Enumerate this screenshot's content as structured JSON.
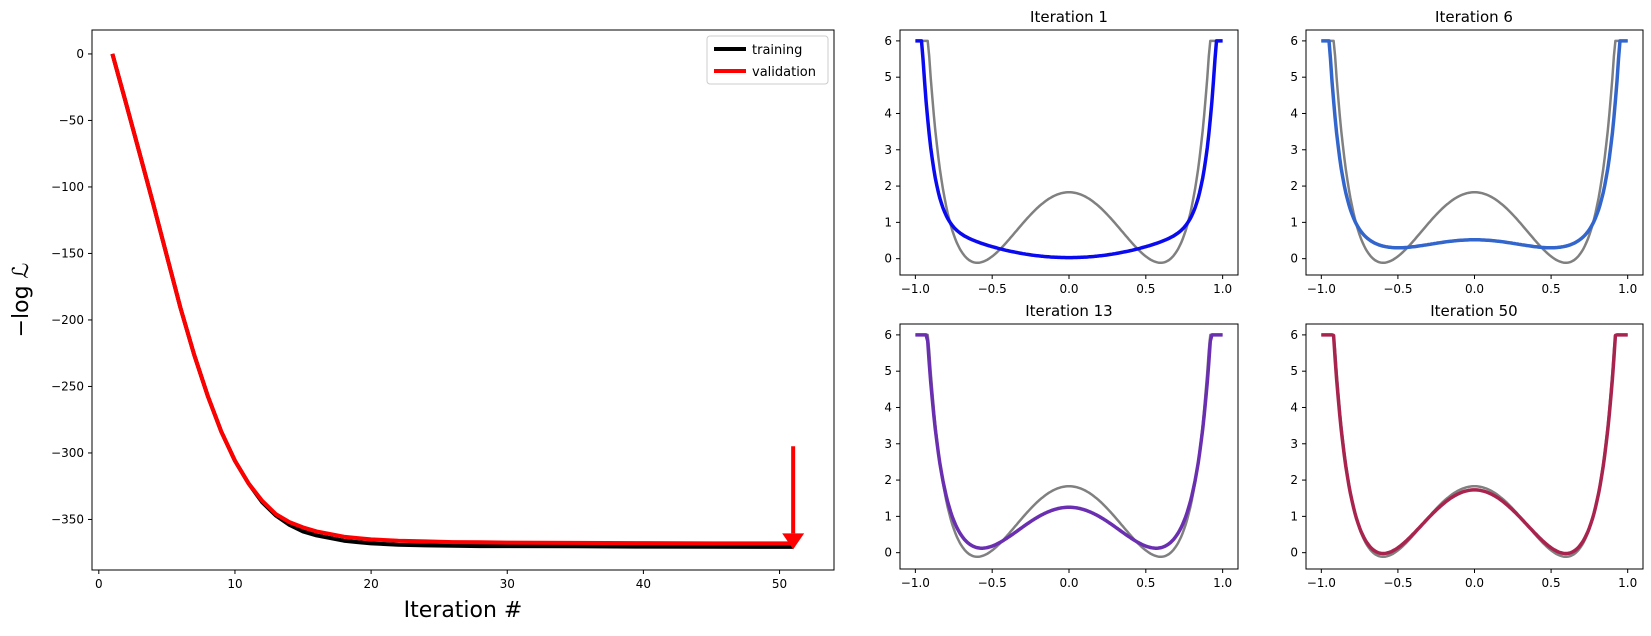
{
  "chart_data": [
    {
      "type": "line",
      "title": "",
      "xlabel": "Iteration #",
      "ylabel": "−log ℒ",
      "xlim": [
        -0.5,
        54
      ],
      "ylim": [
        -388,
        18
      ],
      "xticks": [
        0,
        10,
        20,
        30,
        40,
        50
      ],
      "yticks": [
        0,
        -50,
        -100,
        -150,
        -200,
        -250,
        -300,
        -350
      ],
      "legend": "top-right",
      "series": [
        {
          "name": "training",
          "color": "#000000",
          "x": [
            1,
            2,
            3,
            4,
            5,
            6,
            7,
            8,
            9,
            10,
            11,
            12,
            13,
            14,
            15,
            16,
            17,
            18,
            19,
            20,
            22,
            24,
            26,
            28,
            30,
            35,
            40,
            45,
            51
          ],
          "y": [
            0,
            -37,
            -75,
            -113,
            -152,
            -191,
            -226,
            -257,
            -284,
            -306,
            -323,
            -337,
            -347,
            -354,
            -359,
            -362,
            -364,
            -366,
            -367,
            -368,
            -369,
            -369.5,
            -369.8,
            -370,
            -370,
            -370.2,
            -370.4,
            -370.5,
            -370.6
          ]
        },
        {
          "name": "validation",
          "color": "#ff0000",
          "x": [
            1,
            2,
            3,
            4,
            5,
            6,
            7,
            8,
            9,
            10,
            11,
            12,
            13,
            14,
            15,
            16,
            17,
            18,
            19,
            20,
            22,
            24,
            26,
            28,
            30,
            35,
            40,
            45,
            51
          ],
          "y": [
            0,
            -37,
            -75,
            -113,
            -152,
            -191,
            -226,
            -257,
            -284,
            -306,
            -323,
            -336,
            -346,
            -352,
            -356,
            -359,
            -361,
            -363,
            -364,
            -365,
            -366,
            -366.5,
            -367,
            -367.2,
            -367.4,
            -367.6,
            -367.8,
            -368,
            -368
          ]
        }
      ],
      "annotations": [
        {
          "type": "arrow",
          "color": "#ff0000",
          "x": 51,
          "y_from": -295,
          "y_to": -362
        }
      ]
    },
    {
      "type": "line",
      "title": "Iteration 1",
      "xlim": [
        -1.1,
        1.1
      ],
      "ylim": [
        -0.45,
        6.3
      ],
      "xticks": [
        -1.0,
        -0.5,
        0.0,
        0.5,
        1.0
      ],
      "yticks": [
        0,
        1,
        2,
        3,
        4,
        5,
        6
      ],
      "reference": {
        "color": "#808080",
        "peak": 1.83,
        "minimum": -0.12,
        "min_x": 0.6
      },
      "fit": {
        "color": "#0a0af0",
        "peak": 0.03,
        "minimum": 0.03,
        "min_x": 0.0
      }
    },
    {
      "type": "line",
      "title": "Iteration 6",
      "xlim": [
        -1.1,
        1.1
      ],
      "ylim": [
        -0.45,
        6.3
      ],
      "xticks": [
        -1.0,
        -0.5,
        0.0,
        0.5,
        1.0
      ],
      "yticks": [
        0,
        1,
        2,
        3,
        4,
        5,
        6
      ],
      "reference": {
        "color": "#808080",
        "peak": 1.83,
        "minimum": -0.12,
        "min_x": 0.6
      },
      "fit": {
        "color": "#3366cc",
        "peak": 0.52,
        "minimum": 0.3,
        "min_x": 0.5
      }
    },
    {
      "type": "line",
      "title": "Iteration 13",
      "xlim": [
        -1.1,
        1.1
      ],
      "ylim": [
        -0.45,
        6.3
      ],
      "xticks": [
        -1.0,
        -0.5,
        0.0,
        0.5,
        1.0
      ],
      "yticks": [
        0,
        1,
        2,
        3,
        4,
        5,
        6
      ],
      "reference": {
        "color": "#808080",
        "peak": 1.83,
        "minimum": -0.12,
        "min_x": 0.6
      },
      "fit": {
        "color": "#6a2fb0",
        "peak": 1.25,
        "minimum": 0.12,
        "min_x": 0.57
      }
    },
    {
      "type": "line",
      "title": "Iteration 50",
      "xlim": [
        -1.1,
        1.1
      ],
      "ylim": [
        -0.45,
        6.3
      ],
      "xticks": [
        -1.0,
        -0.5,
        0.0,
        0.5,
        1.0
      ],
      "yticks": [
        0,
        1,
        2,
        3,
        4,
        5,
        6
      ],
      "reference": {
        "color": "#808080",
        "peak": 1.83,
        "minimum": -0.12,
        "min_x": 0.6
      },
      "fit": {
        "color": "#a8244e",
        "peak": 1.73,
        "minimum": -0.03,
        "min_x": 0.6
      }
    }
  ]
}
